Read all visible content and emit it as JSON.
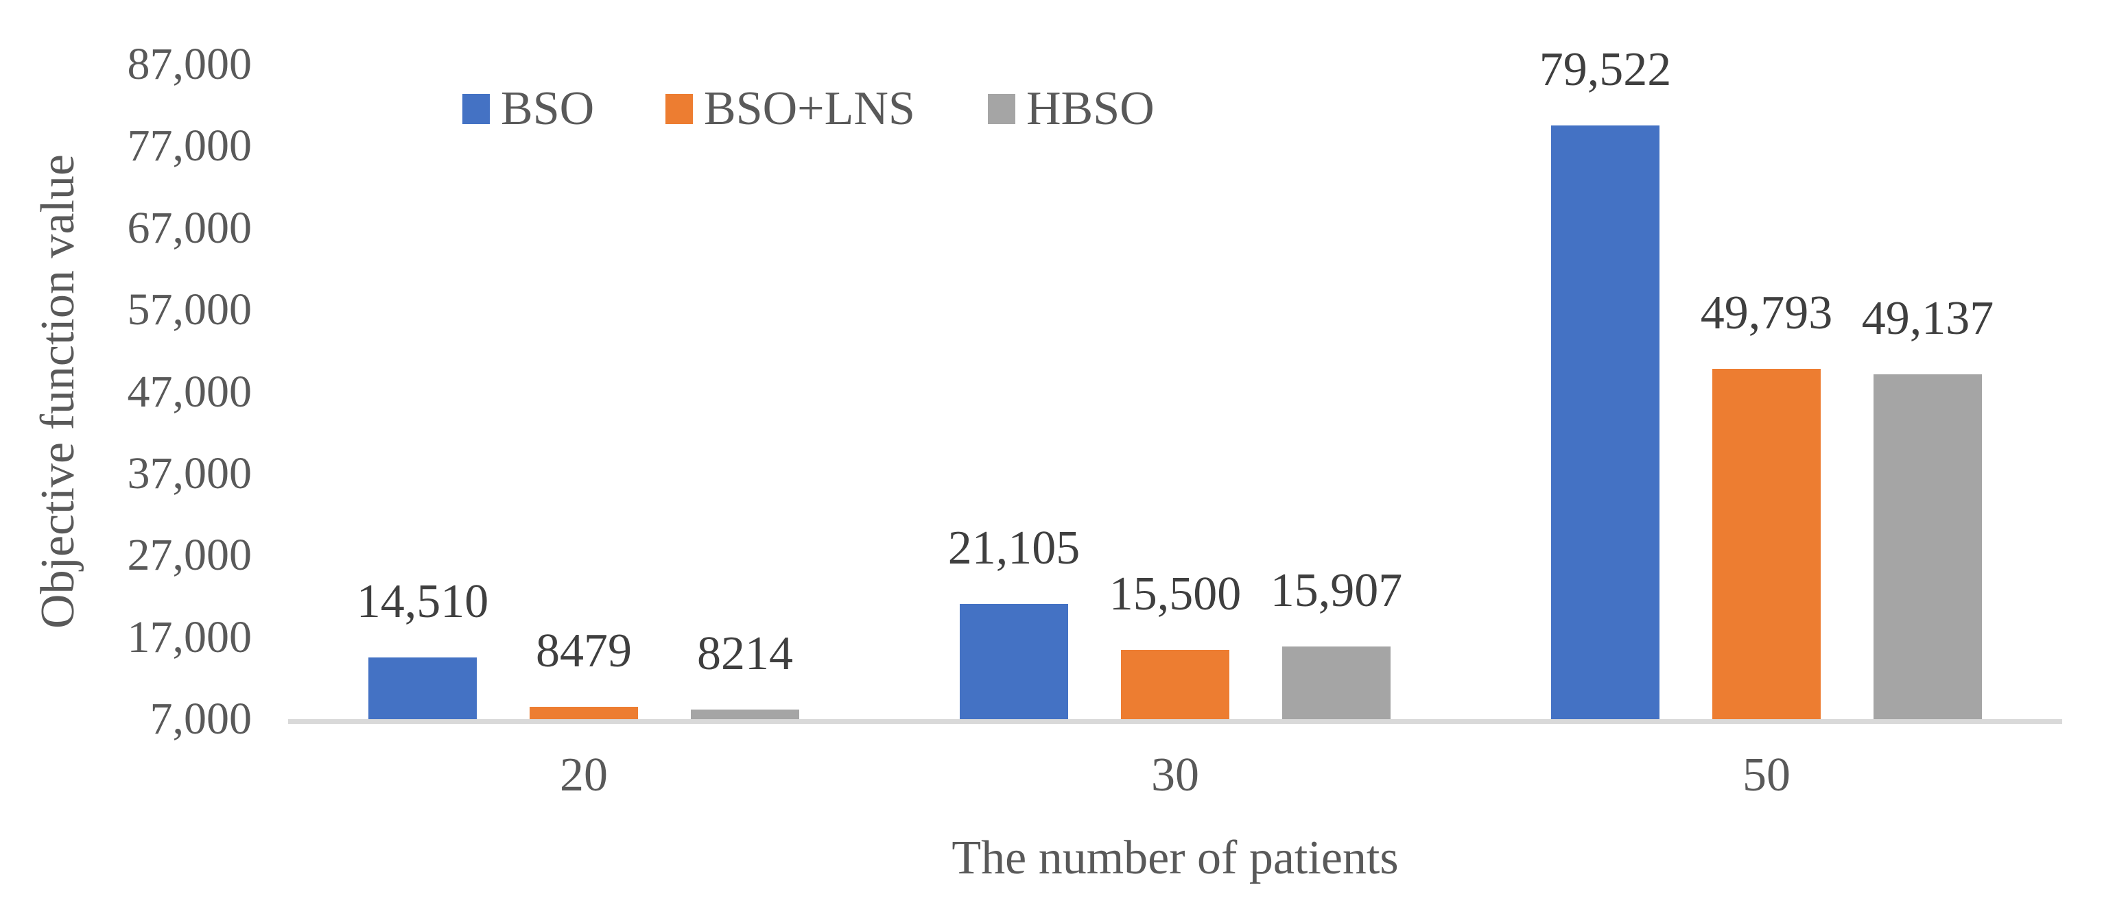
{
  "chart_data": {
    "type": "bar",
    "title": "",
    "xlabel": "The number of patients",
    "ylabel": "Objective function value",
    "categories": [
      "20",
      "30",
      "50"
    ],
    "series": [
      {
        "name": "BSO",
        "color": "#4472C4",
        "values": [
          14510,
          21105,
          79522
        ],
        "labels": [
          "14,510",
          "21,105",
          "79,522"
        ]
      },
      {
        "name": "BSO+LNS",
        "color": "#ED7D31",
        "values": [
          8479,
          15500,
          49793
        ],
        "labels": [
          "8479",
          "15,500",
          "49,793"
        ]
      },
      {
        "name": "HBSO",
        "color": "#A5A5A5",
        "values": [
          8214,
          15907,
          49137
        ],
        "labels": [
          "8214",
          "15,907",
          "49,137"
        ]
      }
    ],
    "y_axis": {
      "min": 7000,
      "max": 87000,
      "step": 10000,
      "tick_labels": [
        "7,000",
        "17,000",
        "27,000",
        "37,000",
        "47,000",
        "57,000",
        "67,000",
        "77,000",
        "87,000"
      ]
    },
    "legend_position": "top",
    "grid": false,
    "baseline_color": "#D9D9D9",
    "text_colors": {
      "ticks": "#595959",
      "axis_titles": "#595959",
      "data_labels": "#3F3F3F"
    }
  }
}
